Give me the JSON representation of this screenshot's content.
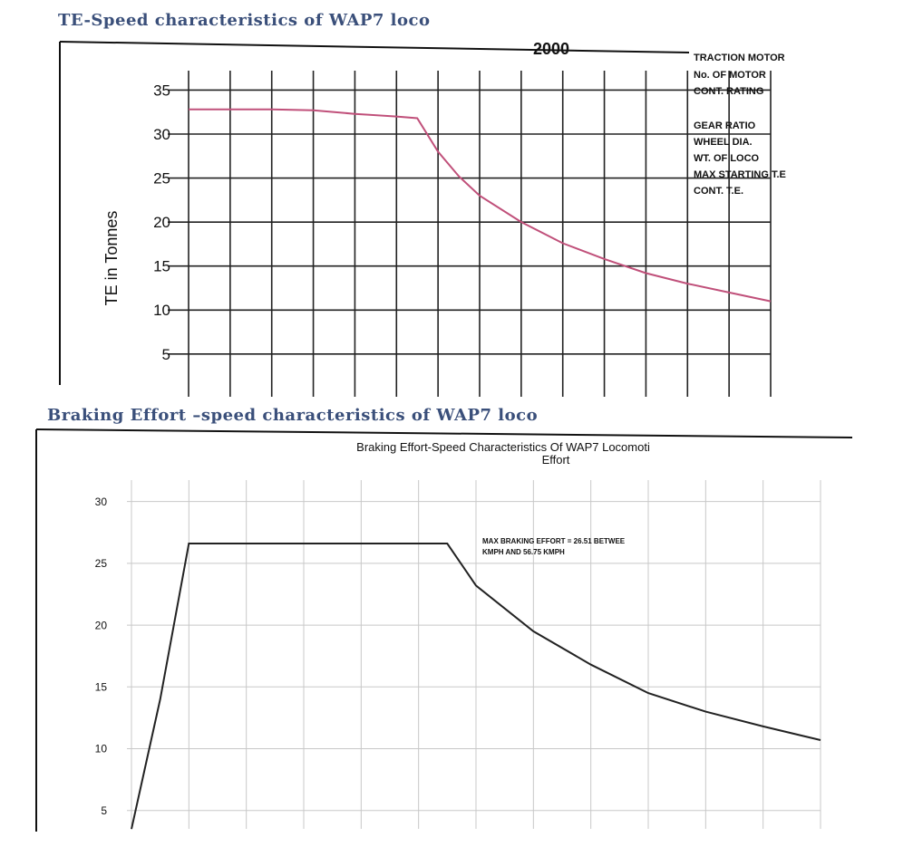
{
  "headings": {
    "te_section": "TE-Speed characteristics of WAP7 loco",
    "be_section": "Braking Effort –speed characteristics of WAP7 loco"
  },
  "colors": {
    "te_curve": "#c0507a",
    "be_curve": "#222222",
    "heading": "#3a4f7a",
    "grid": "#222222",
    "grid_light": "#c8c8c8"
  },
  "chart_data": [
    {
      "type": "line",
      "title": "",
      "xlabel": "",
      "ylabel": "TE in Tonnes",
      "ylim": [
        2,
        37
      ],
      "yticks": [
        5,
        10,
        15,
        20,
        25,
        30,
        35
      ],
      "xlim": [
        0,
        14
      ],
      "grid": true,
      "top_label": "2000",
      "annotations": [
        "TRACTION MOTOR",
        "No. OF MOTOR",
        "CONT. RATING",
        "GEAR RATIO",
        "WHEEL DIA.",
        "WT. OF LOCO",
        "MAX STARTING T.E",
        "CONT. T.E."
      ],
      "series": [
        {
          "x": [
            0,
            1,
            2,
            3,
            4,
            5,
            5.5,
            6,
            6.5,
            7,
            8,
            9,
            10,
            11,
            12,
            13,
            14
          ],
          "y": [
            32.8,
            32.8,
            32.8,
            32.7,
            32.3,
            32.0,
            31.8,
            28.0,
            25.2,
            23.0,
            20.0,
            17.6,
            15.8,
            14.2,
            13.0,
            12.0,
            11.0
          ]
        }
      ]
    },
    {
      "type": "line",
      "title": "Braking Effort-Speed Characteristics Of WAP7 Locomoti",
      "subtitle": "Effort",
      "xlabel": "",
      "ylabel": "",
      "ylim": [
        3,
        31
      ],
      "yticks": [
        5,
        10,
        15,
        20,
        25,
        30
      ],
      "xlim": [
        0,
        12
      ],
      "grid": true,
      "annotation": [
        "MAX BRAKING EFFORT = 26.51 BETWEE",
        "KMPH AND 56.75 KMPH"
      ],
      "series": [
        {
          "x": [
            0,
            0.5,
            1,
            2,
            3,
            4,
            5,
            5.5,
            6,
            7,
            8,
            9,
            10,
            11,
            12
          ],
          "y": [
            3.5,
            14,
            26.6,
            26.6,
            26.6,
            26.6,
            26.6,
            26.6,
            23.2,
            19.5,
            16.8,
            14.5,
            13.0,
            11.8,
            10.7
          ]
        }
      ]
    }
  ]
}
